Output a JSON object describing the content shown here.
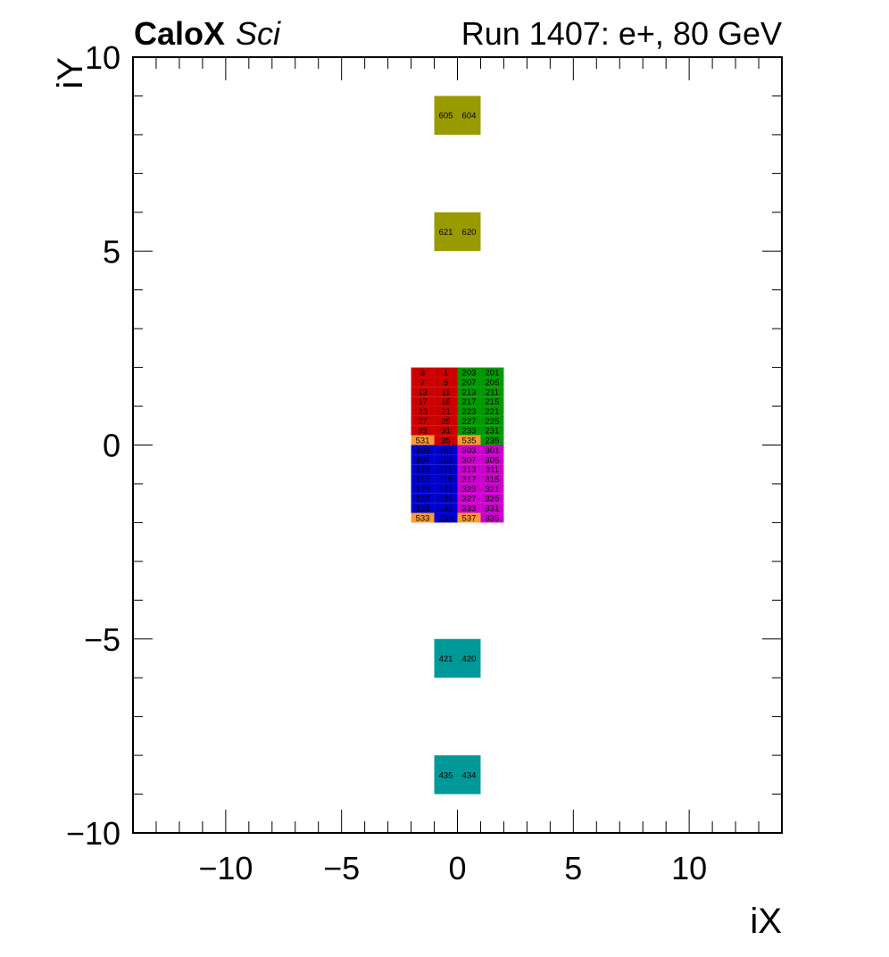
{
  "header": {
    "brand_bold": "CaloX",
    "brand_italic": "Sci",
    "run_info": "Run 1407: e+, 80 GeV"
  },
  "chart_data": {
    "type": "heatmap",
    "title": "",
    "xlabel": "iX",
    "ylabel": "iY",
    "xlim": [
      -14,
      14
    ],
    "ylim": [
      -10,
      10
    ],
    "x_ticks": [
      -10,
      -5,
      0,
      5,
      10
    ],
    "x_tick_labels": [
      "−10",
      "−5",
      "0",
      "5",
      "10"
    ],
    "y_ticks": [
      -10,
      -5,
      0,
      5,
      10
    ],
    "y_tick_labels": [
      "−10",
      "−5",
      "0",
      "5",
      "10"
    ],
    "grid": false,
    "colors": {
      "red": "#cc0000",
      "green": "#009900",
      "blue": "#0000cc",
      "magenta": "#cc00cc",
      "orange": "#ff9933",
      "olive": "#999900",
      "teal": "#009999"
    },
    "cells": [
      {
        "x0": -1,
        "x1": 0,
        "y0": 8,
        "y1": 9,
        "label": "605",
        "color": "olive"
      },
      {
        "x0": 0,
        "x1": 1,
        "y0": 8,
        "y1": 9,
        "label": "604",
        "color": "olive"
      },
      {
        "x0": -1,
        "x1": 0,
        "y0": 5,
        "y1": 6,
        "label": "621",
        "color": "olive"
      },
      {
        "x0": 0,
        "x1": 1,
        "y0": 5,
        "y1": 6,
        "label": "620",
        "color": "olive"
      },
      {
        "x0": -1,
        "x1": 0,
        "y0": -6,
        "y1": -5,
        "label": "421",
        "color": "teal"
      },
      {
        "x0": 0,
        "x1": 1,
        "y0": -6,
        "y1": -5,
        "label": "420",
        "color": "teal"
      },
      {
        "x0": -1,
        "x1": 0,
        "y0": -9,
        "y1": -8,
        "label": "435",
        "color": "teal"
      },
      {
        "x0": 0,
        "x1": 1,
        "y0": -9,
        "y1": -8,
        "label": "434",
        "color": "teal"
      }
    ],
    "grid_block": {
      "columns_x0": [
        -2,
        -1,
        0,
        1
      ],
      "row_height": 0.25,
      "top_y": 2,
      "rows": [
        [
          {
            "label": "3",
            "color": "red"
          },
          {
            "label": "1",
            "color": "red"
          },
          {
            "label": "203",
            "color": "green"
          },
          {
            "label": "201",
            "color": "green"
          }
        ],
        [
          {
            "label": "7",
            "color": "red"
          },
          {
            "label": "5",
            "color": "red"
          },
          {
            "label": "207",
            "color": "green"
          },
          {
            "label": "205",
            "color": "green"
          }
        ],
        [
          {
            "label": "13",
            "color": "red"
          },
          {
            "label": "11",
            "color": "red"
          },
          {
            "label": "213",
            "color": "green"
          },
          {
            "label": "211",
            "color": "green"
          }
        ],
        [
          {
            "label": "17",
            "color": "red"
          },
          {
            "label": "15",
            "color": "red"
          },
          {
            "label": "217",
            "color": "green"
          },
          {
            "label": "215",
            "color": "green"
          }
        ],
        [
          {
            "label": "23",
            "color": "red"
          },
          {
            "label": "21",
            "color": "red"
          },
          {
            "label": "223",
            "color": "green"
          },
          {
            "label": "221",
            "color": "green"
          }
        ],
        [
          {
            "label": "27",
            "color": "red"
          },
          {
            "label": "25",
            "color": "red"
          },
          {
            "label": "227",
            "color": "green"
          },
          {
            "label": "225",
            "color": "green"
          }
        ],
        [
          {
            "label": "33",
            "color": "red"
          },
          {
            "label": "31",
            "color": "red"
          },
          {
            "label": "233",
            "color": "green"
          },
          {
            "label": "231",
            "color": "green"
          }
        ],
        [
          {
            "label": "531",
            "color": "orange"
          },
          {
            "label": "35",
            "color": "red"
          },
          {
            "label": "535",
            "color": "orange"
          },
          {
            "label": "235",
            "color": "green"
          }
        ],
        [
          {
            "label": "103",
            "color": "blue"
          },
          {
            "label": "101",
            "color": "blue"
          },
          {
            "label": "303",
            "color": "magenta"
          },
          {
            "label": "301",
            "color": "magenta"
          }
        ],
        [
          {
            "label": "107",
            "color": "blue"
          },
          {
            "label": "105",
            "color": "blue"
          },
          {
            "label": "307",
            "color": "magenta"
          },
          {
            "label": "305",
            "color": "magenta"
          }
        ],
        [
          {
            "label": "113",
            "color": "blue"
          },
          {
            "label": "111",
            "color": "blue"
          },
          {
            "label": "313",
            "color": "magenta"
          },
          {
            "label": "311",
            "color": "magenta"
          }
        ],
        [
          {
            "label": "117",
            "color": "blue"
          },
          {
            "label": "115",
            "color": "blue"
          },
          {
            "label": "317",
            "color": "magenta"
          },
          {
            "label": "315",
            "color": "magenta"
          }
        ],
        [
          {
            "label": "123",
            "color": "blue"
          },
          {
            "label": "121",
            "color": "blue"
          },
          {
            "label": "323",
            "color": "magenta"
          },
          {
            "label": "321",
            "color": "magenta"
          }
        ],
        [
          {
            "label": "127",
            "color": "blue"
          },
          {
            "label": "125",
            "color": "blue"
          },
          {
            "label": "327",
            "color": "magenta"
          },
          {
            "label": "325",
            "color": "magenta"
          }
        ],
        [
          {
            "label": "133",
            "color": "blue"
          },
          {
            "label": "131",
            "color": "blue"
          },
          {
            "label": "333",
            "color": "magenta"
          },
          {
            "label": "331",
            "color": "magenta"
          }
        ],
        [
          {
            "label": "533",
            "color": "orange"
          },
          {
            "label": "135",
            "color": "blue"
          },
          {
            "label": "537",
            "color": "orange"
          },
          {
            "label": "335",
            "color": "magenta"
          }
        ]
      ]
    }
  }
}
